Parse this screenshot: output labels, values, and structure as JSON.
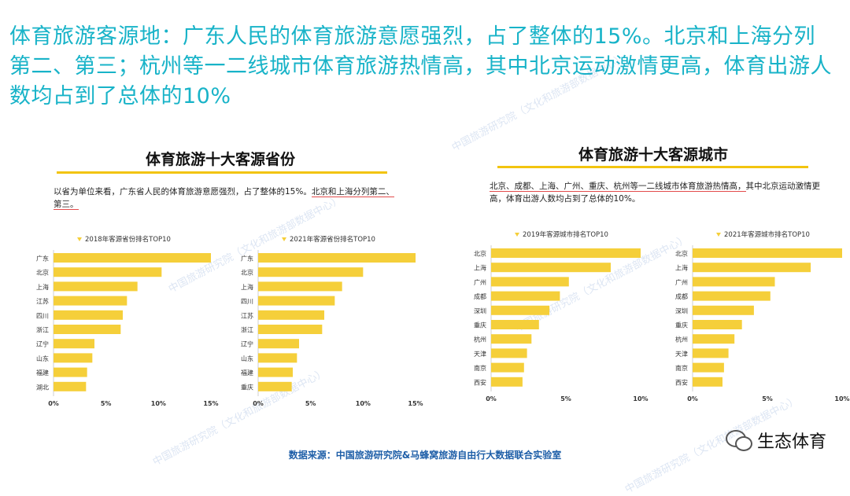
{
  "headline": "体育旅游客源地：广东人民的体育旅游意愿强烈，占了整体的15%。北京和上海分列第二、第三；杭州等一二线城市体育旅游热情高，其中北京运动激情更高，体育出游人数均占到了总体的10%",
  "left_panel": {
    "title": "体育旅游十大客源省份",
    "desc_plain": "以省为单位来看，广东省人民的体育旅游意愿强烈，占了整体的15%。",
    "desc_underlined": "北京和上海分列第二、第三。"
  },
  "right_panel": {
    "title": "体育旅游十大客源城市",
    "desc_underlined": "北京、成都、上海、广州、重庆、杭州等一二线城市体育旅游热情高，",
    "desc_plain": "其中北京运动激情更高，体育出游人数均占到了总体的10%。"
  },
  "source": "数据来源：中国旅游研究院&马蜂窝旅游自由行大数据联合实验室",
  "brand": "生态体育",
  "watermark": "中国旅游研究院（文化和旅游部数据中心）",
  "colors": {
    "bar": "#f5cf3a",
    "headline": "#18b3c8",
    "rule": "#f2c40f",
    "source": "#1f5fa8"
  },
  "chart_data": [
    {
      "type": "bar",
      "orientation": "horizontal",
      "title": "2018年客源省份排名TOP10",
      "categories": [
        "广东",
        "北京",
        "上海",
        "江苏",
        "四川",
        "浙江",
        "辽宁",
        "山东",
        "福建",
        "湖北"
      ],
      "values": [
        15,
        10.3,
        8,
        7,
        6.6,
        6.4,
        3.9,
        3.7,
        3.2,
        3.1
      ],
      "xlim": [
        0,
        15
      ],
      "xticks": [
        "0%",
        "5%",
        "10%",
        "15%"
      ],
      "grid": false,
      "legend": "top"
    },
    {
      "type": "bar",
      "orientation": "horizontal",
      "title": "2021年客源省份排名TOP10",
      "categories": [
        "广东",
        "北京",
        "上海",
        "四川",
        "江苏",
        "浙江",
        "辽宁",
        "山东",
        "福建",
        "重庆"
      ],
      "values": [
        15,
        10,
        8,
        7.3,
        6.3,
        6.1,
        3.9,
        3.7,
        3.3,
        3.2
      ],
      "xlim": [
        0,
        15
      ],
      "xticks": [
        "0%",
        "5%",
        "10%",
        "15%"
      ],
      "grid": false,
      "legend": "top"
    },
    {
      "type": "bar",
      "orientation": "horizontal",
      "title": "2019年客源城市排名TOP10",
      "categories": [
        "北京",
        "上海",
        "广州",
        "成都",
        "深圳",
        "重庆",
        "杭州",
        "天津",
        "南京",
        "西安"
      ],
      "values": [
        10,
        8,
        5.2,
        4.6,
        3.9,
        3.2,
        2.7,
        2.4,
        2.2,
        2.1
      ],
      "xlim": [
        0,
        10
      ],
      "xticks": [
        "0%",
        "5%",
        "10%"
      ],
      "grid": false,
      "legend": "top"
    },
    {
      "type": "bar",
      "orientation": "horizontal",
      "title": "2021年客源城市排名TOP10",
      "categories": [
        "北京",
        "上海",
        "广州",
        "成都",
        "深圳",
        "重庆",
        "杭州",
        "天津",
        "南京",
        "西安"
      ],
      "values": [
        10,
        7.9,
        5.5,
        5.2,
        4.1,
        3.3,
        2.8,
        2.4,
        2.1,
        2.0
      ],
      "xlim": [
        0,
        10
      ],
      "xticks": [
        "0%",
        "5%",
        "10%"
      ],
      "grid": false,
      "legend": "top"
    }
  ]
}
